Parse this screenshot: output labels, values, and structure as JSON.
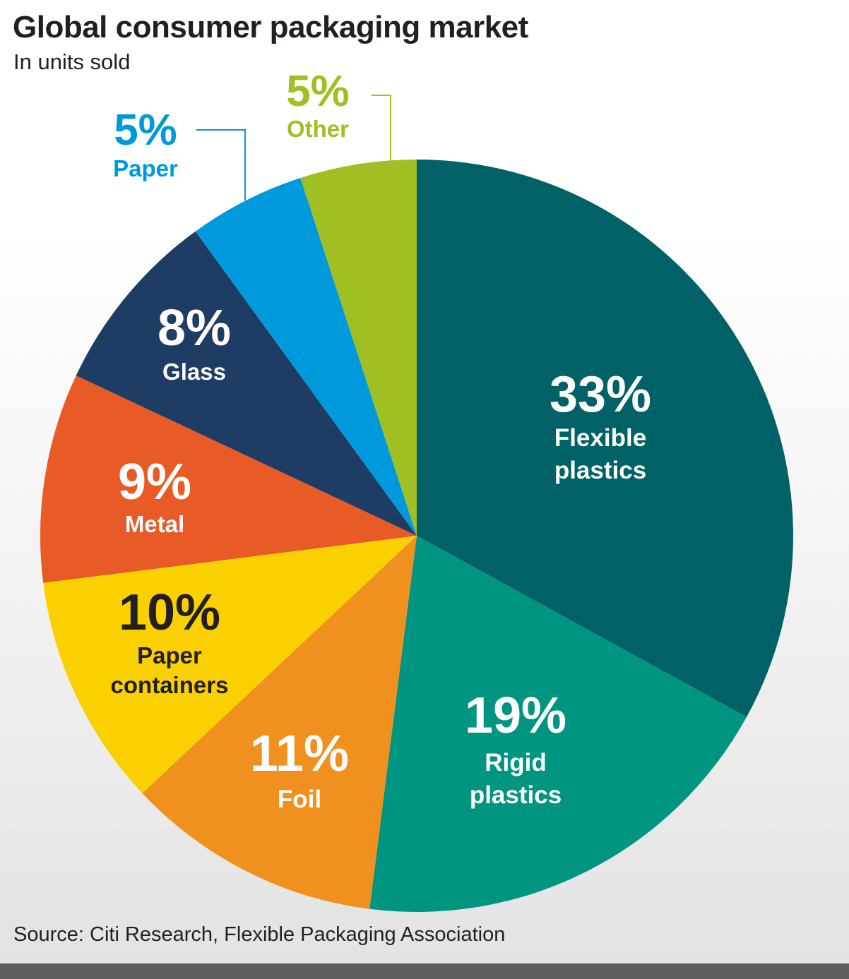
{
  "header": {
    "title": "Global consumer packaging market",
    "subtitle": "In units sold"
  },
  "footer": {
    "source": "Source: Citi Research, Flexible Packaging Association"
  },
  "chart_data": {
    "type": "pie",
    "title": "Global consumer packaging market",
    "subtitle": "In units sold",
    "start": "12 o'clock",
    "direction": "clockwise",
    "slices": [
      {
        "label": "Flexible plastics",
        "label_lines": [
          "Flexible",
          "plastics"
        ],
        "value": 33,
        "pct_text": "33%",
        "color": "#006266",
        "text_color": "#ffffff"
      },
      {
        "label": "Rigid plastics",
        "label_lines": [
          "Rigid",
          "plastics"
        ],
        "value": 19,
        "pct_text": "19%",
        "color": "#009580",
        "text_color": "#ffffff"
      },
      {
        "label": "Foil",
        "label_lines": [
          "Foil"
        ],
        "value": 11,
        "pct_text": "11%",
        "color": "#f0901e",
        "text_color": "#ffffff"
      },
      {
        "label": "Paper containers",
        "label_lines": [
          "Paper",
          "containers"
        ],
        "value": 10,
        "pct_text": "10%",
        "color": "#fad000",
        "text_color": "#231f20"
      },
      {
        "label": "Metal",
        "label_lines": [
          "Metal"
        ],
        "value": 9,
        "pct_text": "9%",
        "color": "#e85a26",
        "text_color": "#ffffff"
      },
      {
        "label": "Glass",
        "label_lines": [
          "Glass"
        ],
        "value": 8,
        "pct_text": "8%",
        "color": "#1f3c64",
        "text_color": "#ffffff"
      },
      {
        "label": "Paper",
        "label_lines": [
          "Paper"
        ],
        "value": 5,
        "pct_text": "5%",
        "color": "#0099dc",
        "text_color": "#0099dc",
        "callout": true
      },
      {
        "label": "Other",
        "label_lines": [
          "Other"
        ],
        "value": 5,
        "pct_text": "5%",
        "color": "#9fbf22",
        "text_color": "#9fbf22",
        "callout": true
      }
    ]
  }
}
